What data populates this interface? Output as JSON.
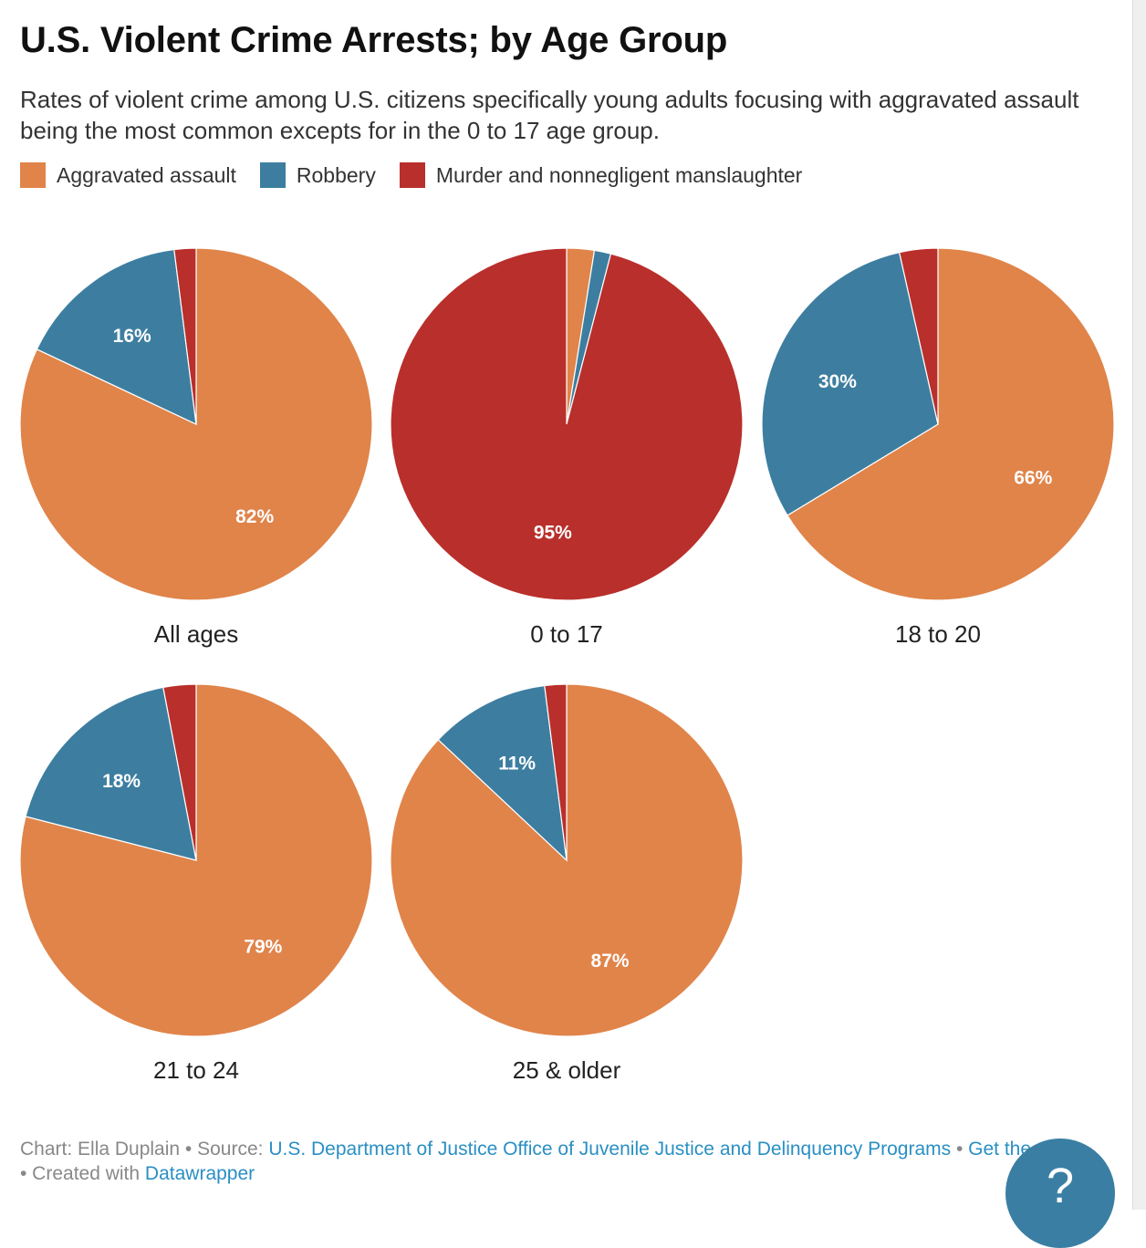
{
  "title": "U.S. Violent Crime Arrests; by Age Group",
  "subtitle": "Rates of violent crime among U.S. citizens specifically young adults focusing with aggravated assault being the most common excepts for in the 0 to 17 age group.",
  "colors": {
    "aggravated": "#e0844a",
    "robbery": "#3d7ea0",
    "murder": "#b92f2b"
  },
  "legend": [
    {
      "label": "Aggravated assault",
      "color": "#e0844a"
    },
    {
      "label": "Robbery",
      "color": "#3d7ea0"
    },
    {
      "label": "Murder and nonnegligent manslaughter",
      "color": "#b92f2b"
    }
  ],
  "chart_data": {
    "type": "pie",
    "categories": [
      "Aggravated assault",
      "Robbery",
      "Murder and nonnegligent manslaughter"
    ],
    "groups": [
      {
        "name": "All ages",
        "values": [
          82,
          16,
          2
        ],
        "labels": [
          "82%",
          "16%",
          ""
        ]
      },
      {
        "name": "0 to 17",
        "values": [
          2.5,
          1.5,
          95
        ],
        "labels": [
          "",
          "",
          "95%"
        ]
      },
      {
        "name": "18 to 20",
        "values": [
          66,
          30,
          3.5
        ],
        "labels": [
          "66%",
          "30%",
          ""
        ]
      },
      {
        "name": "21 to 24",
        "values": [
          79,
          18,
          3
        ],
        "labels": [
          "79%",
          "18%",
          ""
        ]
      },
      {
        "name": "25 & older",
        "values": [
          87,
          11,
          2
        ],
        "labels": [
          "87%",
          "11%",
          ""
        ]
      }
    ]
  },
  "footer": {
    "chart_prefix": "Chart: Ella Duplain • Source: ",
    "source_link": "U.S. Department of Justice Office of Juvenile Justice and Delinquency Programs",
    "separator": " • ",
    "get_data": "Get the data",
    "created_prefix": " • Created with ",
    "created_link": "Datawrapper"
  },
  "help_icon": "?"
}
